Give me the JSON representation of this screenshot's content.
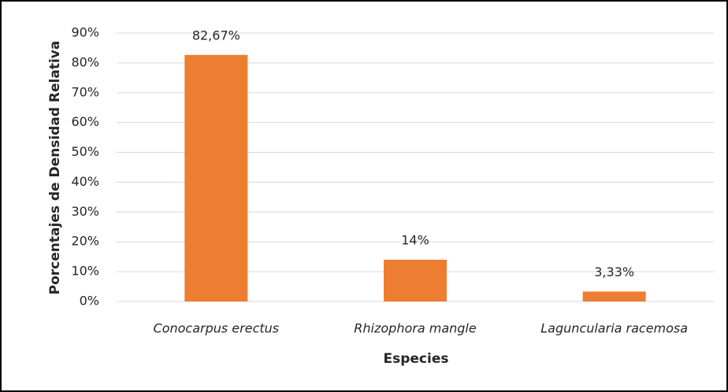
{
  "chart_data": {
    "type": "bar",
    "x_label": "Especies",
    "y_label": "Porcentajes de Densidad Relativa",
    "categories": [
      "Conocarpus erectus",
      "Rhizophora mangle",
      "Laguncularia racemosa"
    ],
    "values": [
      82.67,
      14,
      3.33
    ],
    "value_labels": [
      "82,67%",
      "14%",
      "3,33%"
    ],
    "color": "#ed7d31",
    "ylim": [
      0,
      90
    ],
    "yticks": [
      {
        "value": 0,
        "label": "0%"
      },
      {
        "value": 10,
        "label": "10%"
      },
      {
        "value": 20,
        "label": "20%"
      },
      {
        "value": 30,
        "label": "30%"
      },
      {
        "value": 40,
        "label": "40%"
      },
      {
        "value": 50,
        "label": "50%"
      },
      {
        "value": 60,
        "label": "60%"
      },
      {
        "value": 70,
        "label": "70%"
      },
      {
        "value": 80,
        "label": "80%"
      },
      {
        "value": 90,
        "label": "90%"
      }
    ],
    "grid": true
  }
}
